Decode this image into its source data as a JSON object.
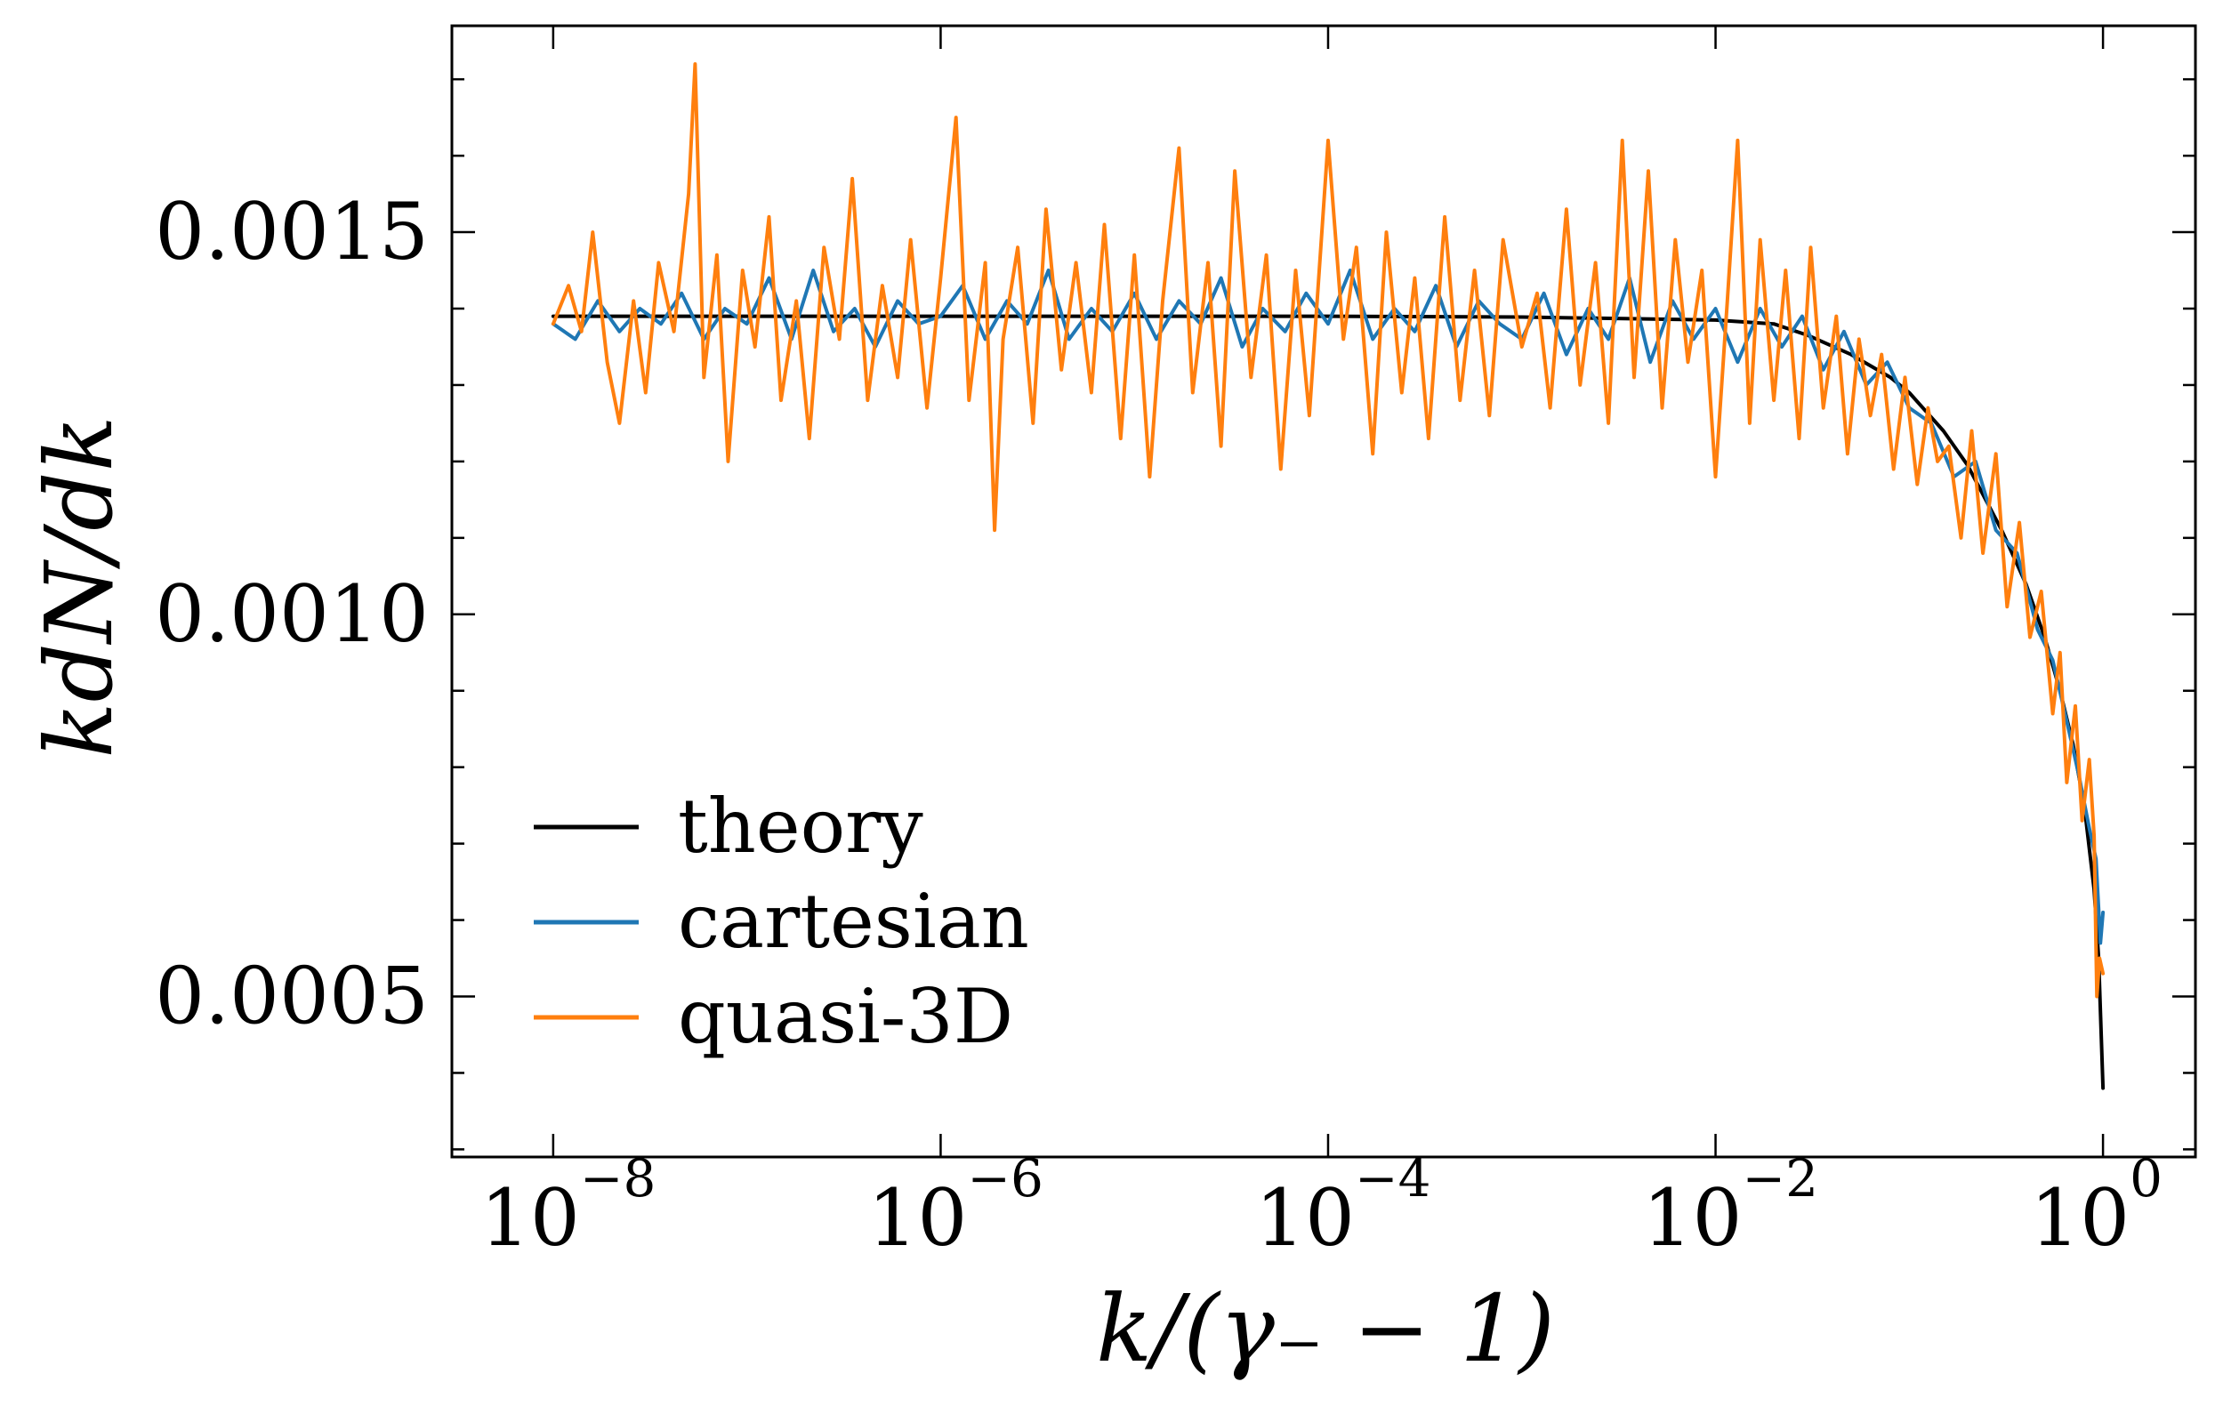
{
  "chart_data": {
    "type": "line",
    "xscale": "log",
    "xlabel": "k/(γ₋ − 1)",
    "ylabel": "kdN/dk",
    "xlim": [
      3e-09,
      3
    ],
    "ylim": [
      0.00029,
      0.00177
    ],
    "xticks": [
      {
        "value": 1e-08,
        "base": "10",
        "exp": "−8"
      },
      {
        "value": 1e-06,
        "base": "10",
        "exp": "−6"
      },
      {
        "value": 0.0001,
        "base": "10",
        "exp": "−4"
      },
      {
        "value": 0.01,
        "base": "10",
        "exp": "−2"
      },
      {
        "value": 1,
        "base": "10",
        "exp": "0"
      }
    ],
    "yticks": [
      {
        "value": 0.0005,
        "label": "0.0005"
      },
      {
        "value": 0.001,
        "label": "0.0010"
      },
      {
        "value": 0.0015,
        "label": "0.0015"
      }
    ],
    "yminor_step": 0.0001,
    "legend_position": "lower-left",
    "series": [
      {
        "name": "theory",
        "color": "#000000",
        "points": [
          [
            1e-08,
            0.00139
          ],
          [
            1e-06,
            0.00139
          ],
          [
            0.0001,
            0.00139
          ],
          [
            0.001,
            0.001389
          ],
          [
            0.01,
            0.001385
          ],
          [
            0.02,
            0.00138
          ],
          [
            0.03,
            0.001365
          ],
          [
            0.05,
            0.00134
          ],
          [
            0.08,
            0.00131
          ],
          [
            0.1,
            0.00129
          ],
          [
            0.15,
            0.00124
          ],
          [
            0.2,
            0.001195
          ],
          [
            0.3,
            0.00111
          ],
          [
            0.4,
            0.00104
          ],
          [
            0.5,
            0.00097
          ],
          [
            0.6,
            0.0009
          ],
          [
            0.7,
            0.00083
          ],
          [
            0.8,
            0.00075
          ],
          [
            0.9,
            0.00064
          ],
          [
            0.95,
            0.00055
          ],
          [
            1.0,
            0.00038
          ]
        ]
      },
      {
        "name": "cartesian",
        "color": "#1f77b4",
        "points": [
          [
            1e-08,
            0.00138
          ],
          [
            1.3e-08,
            0.00136
          ],
          [
            1.7e-08,
            0.00141
          ],
          [
            2.2e-08,
            0.00137
          ],
          [
            2.8e-08,
            0.0014
          ],
          [
            3.6e-08,
            0.00138
          ],
          [
            4.6e-08,
            0.00142
          ],
          [
            6e-08,
            0.00136
          ],
          [
            7.7e-08,
            0.0014
          ],
          [
            1e-07,
            0.00138
          ],
          [
            1.3e-07,
            0.00144
          ],
          [
            1.7e-07,
            0.00136
          ],
          [
            2.2e-07,
            0.00145
          ],
          [
            2.8e-07,
            0.00137
          ],
          [
            3.6e-07,
            0.0014
          ],
          [
            4.6e-07,
            0.00135
          ],
          [
            6e-07,
            0.00141
          ],
          [
            7.7e-07,
            0.00138
          ],
          [
            1e-06,
            0.00139
          ],
          [
            1.3e-06,
            0.00143
          ],
          [
            1.7e-06,
            0.00136
          ],
          [
            2.2e-06,
            0.00141
          ],
          [
            2.8e-06,
            0.00138
          ],
          [
            3.6e-06,
            0.00145
          ],
          [
            4.6e-06,
            0.00136
          ],
          [
            6e-06,
            0.0014
          ],
          [
            7.7e-06,
            0.00137
          ],
          [
            1e-05,
            0.00142
          ],
          [
            1.3e-05,
            0.00136
          ],
          [
            1.7e-05,
            0.00141
          ],
          [
            2.2e-05,
            0.00138
          ],
          [
            2.8e-05,
            0.00144
          ],
          [
            3.6e-05,
            0.00135
          ],
          [
            4.6e-05,
            0.0014
          ],
          [
            6e-05,
            0.00137
          ],
          [
            7.7e-05,
            0.00142
          ],
          [
            0.0001,
            0.00138
          ],
          [
            0.00013,
            0.00145
          ],
          [
            0.00017,
            0.00136
          ],
          [
            0.00022,
            0.0014
          ],
          [
            0.00028,
            0.00137
          ],
          [
            0.00036,
            0.00143
          ],
          [
            0.00046,
            0.00135
          ],
          [
            0.0006,
            0.00141
          ],
          [
            0.00077,
            0.00138
          ],
          [
            0.001,
            0.00136
          ],
          [
            0.0013,
            0.00142
          ],
          [
            0.0017,
            0.00134
          ],
          [
            0.0022,
            0.0014
          ],
          [
            0.0028,
            0.00136
          ],
          [
            0.0036,
            0.00144
          ],
          [
            0.0046,
            0.00133
          ],
          [
            0.006,
            0.00141
          ],
          [
            0.0077,
            0.00136
          ],
          [
            0.01,
            0.0014
          ],
          [
            0.013,
            0.00133
          ],
          [
            0.017,
            0.0014
          ],
          [
            0.022,
            0.00135
          ],
          [
            0.028,
            0.00139
          ],
          [
            0.036,
            0.00132
          ],
          [
            0.046,
            0.00137
          ],
          [
            0.06,
            0.0013
          ],
          [
            0.077,
            0.00133
          ],
          [
            0.1,
            0.00127
          ],
          [
            0.13,
            0.00125
          ],
          [
            0.17,
            0.00118
          ],
          [
            0.22,
            0.0012
          ],
          [
            0.28,
            0.00111
          ],
          [
            0.36,
            0.00108
          ],
          [
            0.46,
            0.00098
          ],
          [
            0.55,
            0.00094
          ],
          [
            0.65,
            0.00086
          ],
          [
            0.75,
            0.00079
          ],
          [
            0.85,
            0.00072
          ],
          [
            0.92,
            0.00068
          ],
          [
            0.97,
            0.00057
          ],
          [
            1.0,
            0.00061
          ]
        ]
      },
      {
        "name": "quasi-3D",
        "color": "#ff7f0e",
        "points": [
          [
            1e-08,
            0.00138
          ],
          [
            1.2e-08,
            0.00143
          ],
          [
            1.4e-08,
            0.00137
          ],
          [
            1.6e-08,
            0.0015
          ],
          [
            1.9e-08,
            0.00133
          ],
          [
            2.2e-08,
            0.00125
          ],
          [
            2.6e-08,
            0.00141
          ],
          [
            3e-08,
            0.00129
          ],
          [
            3.5e-08,
            0.00146
          ],
          [
            4.2e-08,
            0.00137
          ],
          [
            5e-08,
            0.00155
          ],
          [
            5.4e-08,
            0.00172
          ],
          [
            6e-08,
            0.00131
          ],
          [
            7e-08,
            0.00147
          ],
          [
            8e-08,
            0.0012
          ],
          [
            9.5e-08,
            0.00145
          ],
          [
            1.1e-07,
            0.00135
          ],
          [
            1.3e-07,
            0.00152
          ],
          [
            1.5e-07,
            0.00128
          ],
          [
            1.8e-07,
            0.00141
          ],
          [
            2.1e-07,
            0.00123
          ],
          [
            2.5e-07,
            0.00148
          ],
          [
            3e-07,
            0.00136
          ],
          [
            3.5e-07,
            0.00157
          ],
          [
            4.2e-07,
            0.00128
          ],
          [
            5e-07,
            0.00143
          ],
          [
            6e-07,
            0.00131
          ],
          [
            7e-07,
            0.00149
          ],
          [
            8.5e-07,
            0.00127
          ],
          [
            1e-06,
            0.00144
          ],
          [
            1.2e-06,
            0.00165
          ],
          [
            1.4e-06,
            0.00128
          ],
          [
            1.7e-06,
            0.00146
          ],
          [
            1.9e-06,
            0.00111
          ],
          [
            2.1e-06,
            0.00136
          ],
          [
            2.5e-06,
            0.00148
          ],
          [
            3e-06,
            0.00125
          ],
          [
            3.5e-06,
            0.00153
          ],
          [
            4.2e-06,
            0.00132
          ],
          [
            5e-06,
            0.00146
          ],
          [
            6e-06,
            0.00129
          ],
          [
            7e-06,
            0.00151
          ],
          [
            8.5e-06,
            0.00123
          ],
          [
            1e-05,
            0.00147
          ],
          [
            1.2e-05,
            0.00118
          ],
          [
            1.4e-05,
            0.00141
          ],
          [
            1.7e-05,
            0.00161
          ],
          [
            2e-05,
            0.00129
          ],
          [
            2.4e-05,
            0.00146
          ],
          [
            2.8e-05,
            0.00122
          ],
          [
            3.3e-05,
            0.00158
          ],
          [
            4e-05,
            0.00131
          ],
          [
            4.8e-05,
            0.00147
          ],
          [
            5.7e-05,
            0.00119
          ],
          [
            6.8e-05,
            0.00145
          ],
          [
            8e-05,
            0.00126
          ],
          [
            0.0001,
            0.00162
          ],
          [
            0.00012,
            0.00136
          ],
          [
            0.00014,
            0.00148
          ],
          [
            0.00017,
            0.00121
          ],
          [
            0.0002,
            0.0015
          ],
          [
            0.00024,
            0.00129
          ],
          [
            0.00028,
            0.00144
          ],
          [
            0.00033,
            0.00123
          ],
          [
            0.0004,
            0.00152
          ],
          [
            0.00048,
            0.00128
          ],
          [
            0.00057,
            0.00145
          ],
          [
            0.00068,
            0.00126
          ],
          [
            0.0008,
            0.00149
          ],
          [
            0.001,
            0.00135
          ],
          [
            0.0012,
            0.00142
          ],
          [
            0.0014,
            0.00127
          ],
          [
            0.0017,
            0.00153
          ],
          [
            0.002,
            0.0013
          ],
          [
            0.0024,
            0.00146
          ],
          [
            0.0028,
            0.00125
          ],
          [
            0.0033,
            0.00162
          ],
          [
            0.0038,
            0.00131
          ],
          [
            0.0045,
            0.00158
          ],
          [
            0.0053,
            0.00127
          ],
          [
            0.0062,
            0.00149
          ],
          [
            0.0072,
            0.00133
          ],
          [
            0.0085,
            0.00145
          ],
          [
            0.01,
            0.00118
          ],
          [
            0.0115,
            0.00141
          ],
          [
            0.013,
            0.00162
          ],
          [
            0.015,
            0.00125
          ],
          [
            0.017,
            0.00149
          ],
          [
            0.02,
            0.00128
          ],
          [
            0.023,
            0.00145
          ],
          [
            0.027,
            0.00123
          ],
          [
            0.031,
            0.00148
          ],
          [
            0.036,
            0.00127
          ],
          [
            0.042,
            0.00139
          ],
          [
            0.048,
            0.00121
          ],
          [
            0.055,
            0.00136
          ],
          [
            0.063,
            0.00126
          ],
          [
            0.072,
            0.00134
          ],
          [
            0.083,
            0.00119
          ],
          [
            0.095,
            0.00131
          ],
          [
            0.11,
            0.00117
          ],
          [
            0.125,
            0.00127
          ],
          [
            0.14,
            0.0012
          ],
          [
            0.16,
            0.00122
          ],
          [
            0.185,
            0.0011
          ],
          [
            0.21,
            0.00124
          ],
          [
            0.24,
            0.00108
          ],
          [
            0.28,
            0.00121
          ],
          [
            0.32,
            0.00101
          ],
          [
            0.37,
            0.00112
          ],
          [
            0.42,
            0.00097
          ],
          [
            0.48,
            0.00103
          ],
          [
            0.55,
            0.00087
          ],
          [
            0.6,
            0.00095
          ],
          [
            0.65,
            0.00078
          ],
          [
            0.72,
            0.00088
          ],
          [
            0.78,
            0.00073
          ],
          [
            0.85,
            0.00081
          ],
          [
            0.9,
            0.00071
          ],
          [
            0.93,
            0.0005
          ],
          [
            0.96,
            0.00055
          ],
          [
            1.0,
            0.00053
          ]
        ]
      }
    ]
  }
}
